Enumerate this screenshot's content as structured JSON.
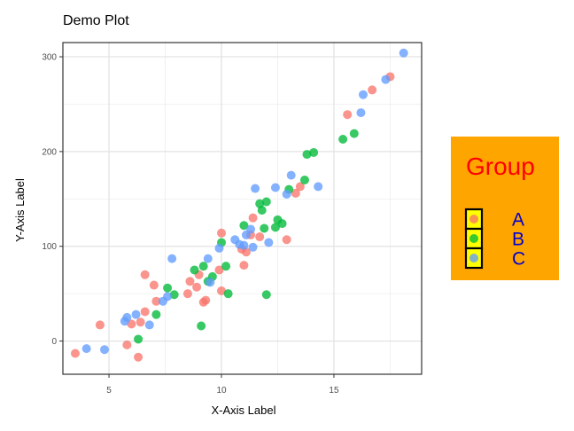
{
  "chart_data": {
    "type": "scatter",
    "title": "Demo Plot",
    "xlabel": "X-Axis Label",
    "ylabel": "Y-Axis Label",
    "xlim": [
      2.95,
      18.9
    ],
    "ylim": [
      -35,
      315
    ],
    "xticks": [
      5,
      10,
      15
    ],
    "yticks": [
      0,
      100,
      200,
      300
    ],
    "grid": true,
    "legend": {
      "title": "Group",
      "position": "right",
      "title_color": "#ff0000",
      "label_color": "#0000cd",
      "background": "#ffa500",
      "key_border": "#000000",
      "key_fill": "#ffff00"
    },
    "series": [
      {
        "name": "A",
        "color": "#f8766d",
        "points": [
          [
            3.5,
            -13
          ],
          [
            4.6,
            17
          ],
          [
            5.8,
            -4
          ],
          [
            6.0,
            18
          ],
          [
            6.3,
            -17
          ],
          [
            6.4,
            20
          ],
          [
            6.6,
            31
          ],
          [
            6.6,
            70
          ],
          [
            7.0,
            59
          ],
          [
            7.1,
            42
          ],
          [
            8.5,
            50
          ],
          [
            8.6,
            63
          ],
          [
            8.9,
            57
          ],
          [
            9.0,
            70
          ],
          [
            9.2,
            41
          ],
          [
            9.3,
            43
          ],
          [
            9.9,
            75
          ],
          [
            10.0,
            53
          ],
          [
            10.0,
            114
          ],
          [
            10.9,
            97
          ],
          [
            11.0,
            80
          ],
          [
            11.1,
            94
          ],
          [
            11.3,
            112
          ],
          [
            11.4,
            130
          ],
          [
            11.7,
            110
          ],
          [
            12.9,
            107
          ],
          [
            13.3,
            156
          ],
          [
            13.5,
            163
          ],
          [
            15.6,
            239
          ],
          [
            16.7,
            265
          ],
          [
            17.5,
            279
          ]
        ]
      },
      {
        "name": "B",
        "color": "#00ba38",
        "points": [
          [
            6.3,
            2
          ],
          [
            7.1,
            28
          ],
          [
            7.6,
            56
          ],
          [
            7.9,
            49
          ],
          [
            8.8,
            75
          ],
          [
            9.1,
            16
          ],
          [
            9.2,
            79
          ],
          [
            9.4,
            63
          ],
          [
            9.6,
            68
          ],
          [
            10.0,
            104
          ],
          [
            10.2,
            79
          ],
          [
            10.3,
            50
          ],
          [
            11.0,
            122
          ],
          [
            11.7,
            145
          ],
          [
            11.8,
            138
          ],
          [
            11.9,
            119
          ],
          [
            12.0,
            147
          ],
          [
            12.0,
            49
          ],
          [
            12.4,
            120
          ],
          [
            12.5,
            128
          ],
          [
            12.7,
            124
          ],
          [
            13.0,
            160
          ],
          [
            13.7,
            170
          ],
          [
            13.8,
            197
          ],
          [
            14.1,
            199
          ],
          [
            15.4,
            213
          ],
          [
            15.9,
            219
          ]
        ]
      },
      {
        "name": "C",
        "color": "#619cff",
        "points": [
          [
            4.0,
            -8
          ],
          [
            4.8,
            -9
          ],
          [
            5.7,
            21
          ],
          [
            5.8,
            25
          ],
          [
            6.2,
            28
          ],
          [
            6.8,
            17
          ],
          [
            7.4,
            42
          ],
          [
            7.6,
            47
          ],
          [
            7.8,
            87
          ],
          [
            9.4,
            87
          ],
          [
            9.5,
            62
          ],
          [
            9.9,
            98
          ],
          [
            10.6,
            107
          ],
          [
            10.8,
            102
          ],
          [
            11.0,
            101
          ],
          [
            11.1,
            112
          ],
          [
            11.3,
            118
          ],
          [
            11.4,
            99
          ],
          [
            11.5,
            161
          ],
          [
            12.1,
            104
          ],
          [
            12.4,
            162
          ],
          [
            12.9,
            155
          ],
          [
            13.1,
            175
          ],
          [
            14.3,
            163
          ],
          [
            16.2,
            241
          ],
          [
            16.3,
            260
          ],
          [
            17.3,
            276
          ],
          [
            18.1,
            304
          ]
        ]
      }
    ]
  }
}
